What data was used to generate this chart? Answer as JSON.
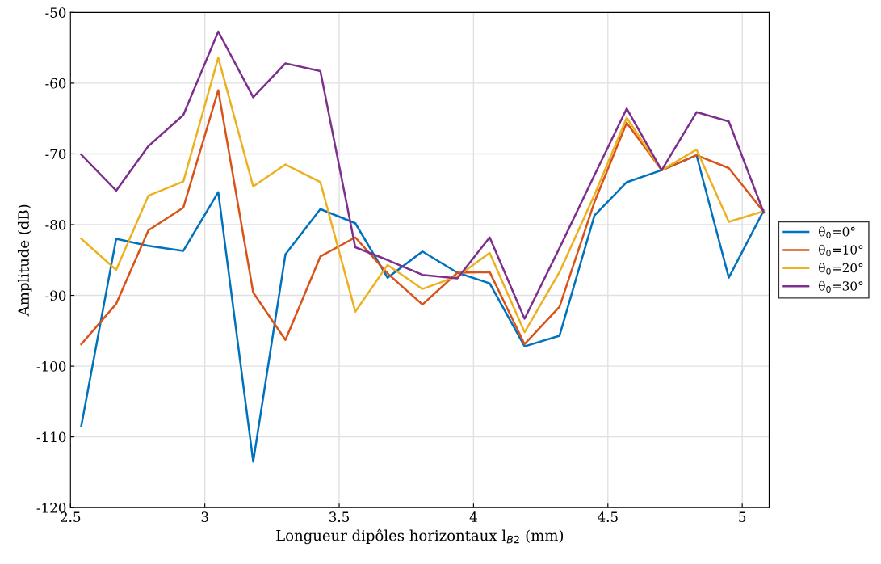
{
  "chart_data": {
    "type": "line",
    "xlabel": "Longueur dipôles horizontaux l$_{B2}$ (mm)",
    "ylabel": "Amplitude (dB)",
    "x": [
      2.54,
      2.67,
      2.79,
      2.92,
      3.05,
      3.18,
      3.3,
      3.43,
      3.56,
      3.68,
      3.81,
      3.94,
      4.06,
      4.19,
      4.32,
      4.45,
      4.57,
      4.7,
      4.83,
      4.95,
      5.08
    ],
    "series": [
      {
        "name": "θ$_{0}$=0°",
        "color": "#0072bd",
        "values": [
          -108.5,
          -82,
          -83,
          -83.7,
          -75.4,
          -113.5,
          -84.2,
          -77.8,
          -79.8,
          -87.5,
          -83.8,
          -86.8,
          -88.3,
          -97.2,
          -95.7,
          -78.7,
          -74,
          -72.3,
          -70.2,
          -87.5,
          -78
        ]
      },
      {
        "name": "θ$_{0}$=10°",
        "color": "#d95319",
        "values": [
          -96.9,
          -91.2,
          -80.8,
          -77.6,
          -61,
          -89.6,
          -96.3,
          -84.5,
          -81.8,
          -86.9,
          -91.3,
          -86.8,
          -86.7,
          -96.9,
          -91.6,
          -76.8,
          -65.6,
          -72.3,
          -70.2,
          -72,
          -78.2
        ]
      },
      {
        "name": "θ$_{0}$=20°",
        "color": "#edb120",
        "values": [
          -82,
          -86.4,
          -75.9,
          -73.9,
          -56.4,
          -74.6,
          -71.5,
          -74,
          -92.3,
          -85.7,
          -89.1,
          -87.3,
          -84,
          -95.2,
          -86.7,
          -75.8,
          -64.9,
          -72.3,
          -69.4,
          -79.6,
          -78.1
        ]
      },
      {
        "name": "θ$_{0}$=30°",
        "color": "#7e2f8e",
        "values": [
          -70.1,
          -75.2,
          -68.9,
          -64.5,
          -52.7,
          -62,
          -57.2,
          -58.3,
          -83.2,
          -85,
          -87.1,
          -87.6,
          -81.8,
          -93.3,
          -83.3,
          -73,
          -63.6,
          -72.3,
          -64.1,
          -65.4,
          -78.3
        ]
      }
    ],
    "xlim": [
      2.5,
      5.1
    ],
    "xticks": [
      2.5,
      3,
      3.5,
      4,
      4.5,
      5
    ],
    "ylim": [
      -120,
      -50
    ],
    "yticks": [
      -120,
      -110,
      -100,
      -90,
      -80,
      -70,
      -60,
      -50
    ],
    "grid": true,
    "legend": "right",
    "line_style": "solid",
    "marker": "none"
  }
}
